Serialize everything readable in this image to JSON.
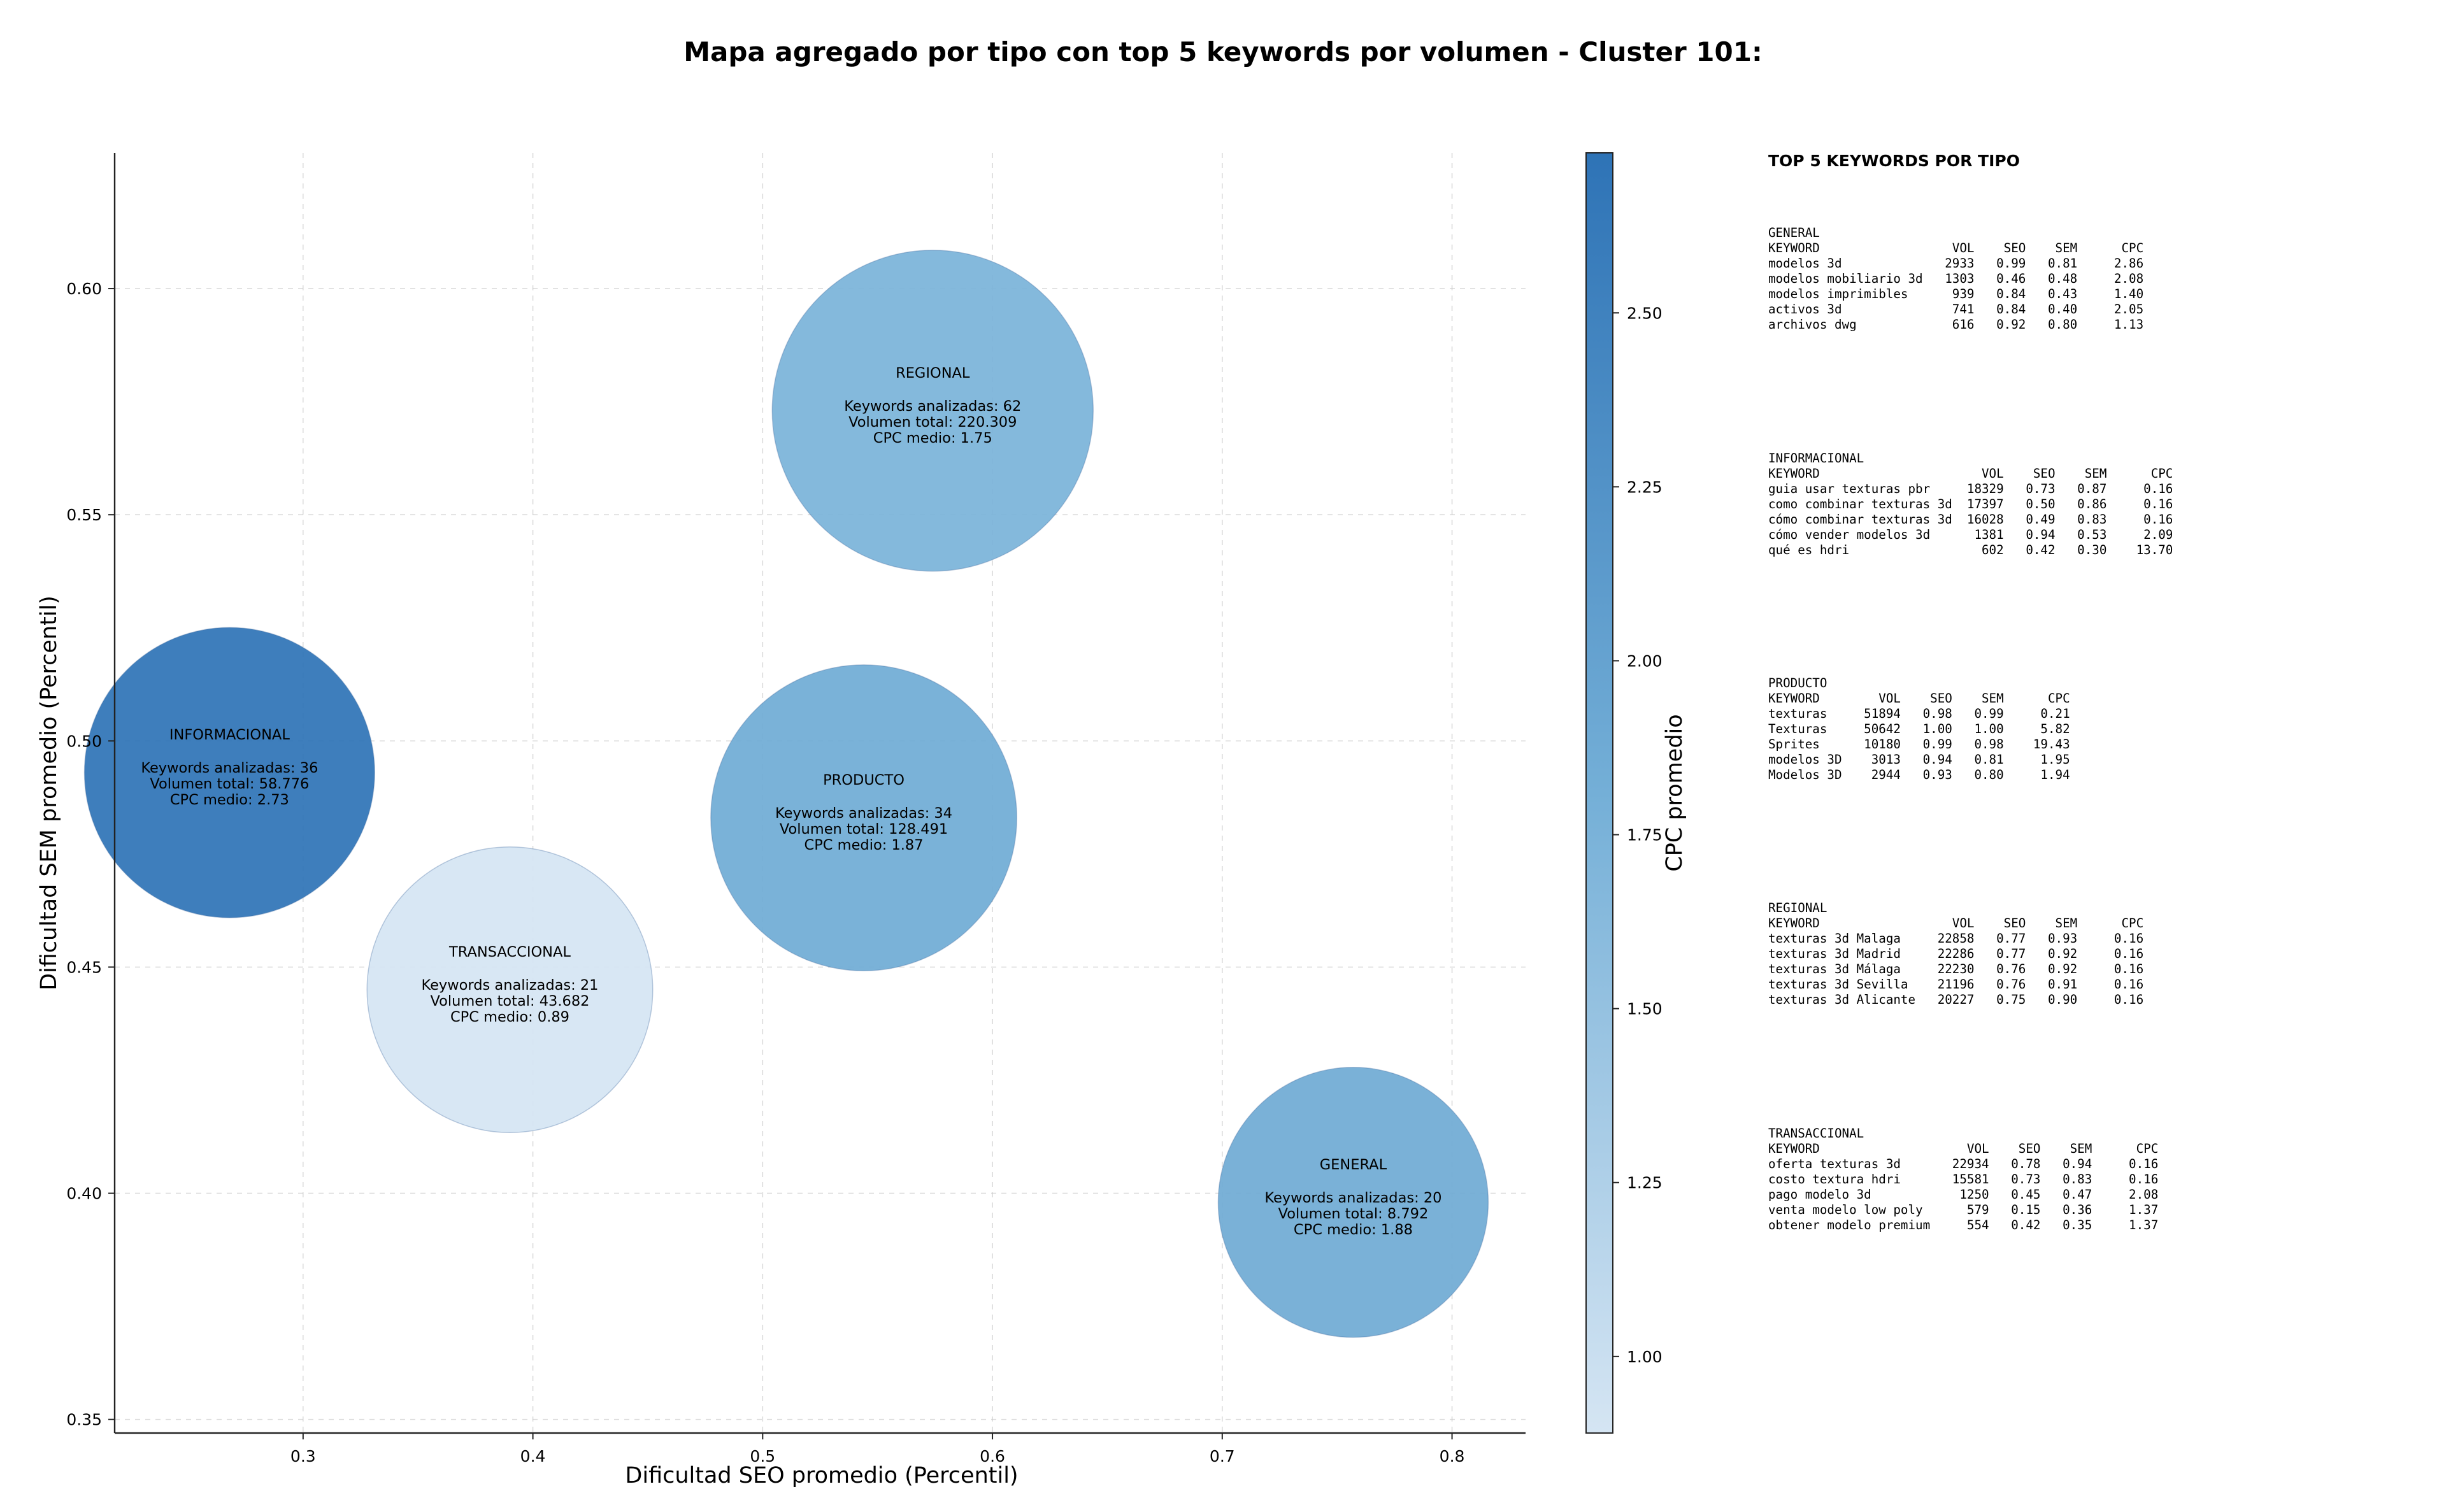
{
  "chart_data": {
    "type": "scatter",
    "subtype": "bubble",
    "title": "Mapa agregado por tipo con top 5 keywords por volumen - Cluster 101:",
    "xlabel": "Dificultad SEO promedio (Percentil)",
    "ylabel": "Dificultad SEM promedio (Percentil)",
    "xlim": [
      0.218,
      0.832
    ],
    "ylim": [
      0.347,
      0.63
    ],
    "xticks": [
      "0.3",
      "0.4",
      "0.5",
      "0.6",
      "0.7",
      "0.8"
    ],
    "yticks": [
      "0.35",
      "0.40",
      "0.45",
      "0.50",
      "0.55",
      "0.60"
    ],
    "grid": true,
    "colorbar": {
      "label": "CPC promedio",
      "range": [
        0.89,
        2.73
      ],
      "ticks": [
        "1.00",
        "1.25",
        "1.50",
        "1.75",
        "2.00",
        "2.25",
        "2.50"
      ],
      "color_low": "#d5e5f3",
      "color_mid": "#74afd7",
      "color_high": "#2e73b6"
    },
    "points": [
      {
        "name": "REGIONAL",
        "x": 0.574,
        "y": 0.573,
        "keywords_label": "Keywords analizadas: 62",
        "volume_label": "Volumen total: 220.309",
        "cpc_label": "CPC medio: 1.75",
        "keywords": 62,
        "volume": 220309,
        "cpc": 1.75
      },
      {
        "name": "INFORMACIONAL",
        "x": 0.268,
        "y": 0.493,
        "keywords_label": "Keywords analizadas: 36",
        "volume_label": "Volumen total: 58.776",
        "cpc_label": "CPC medio: 2.73",
        "keywords": 36,
        "volume": 58776,
        "cpc": 2.73
      },
      {
        "name": "PRODUCTO",
        "x": 0.544,
        "y": 0.483,
        "keywords_label": "Keywords analizadas: 34",
        "volume_label": "Volumen total: 128.491",
        "cpc_label": "CPC medio: 1.87",
        "keywords": 34,
        "volume": 128491,
        "cpc": 1.87
      },
      {
        "name": "TRANSACCIONAL",
        "x": 0.39,
        "y": 0.445,
        "keywords_label": "Keywords analizadas: 21",
        "volume_label": "Volumen total: 43.682",
        "cpc_label": "CPC medio: 0.89",
        "keywords": 21,
        "volume": 43682,
        "cpc": 0.89
      },
      {
        "name": "GENERAL",
        "x": 0.757,
        "y": 0.398,
        "keywords_label": "Keywords analizadas: 20",
        "volume_label": "Volumen total: 8.792",
        "cpc_label": "CPC medio: 1.88",
        "keywords": 20,
        "volume": 8792,
        "cpc": 1.88
      }
    ]
  },
  "side_panel": {
    "title": "TOP 5 KEYWORDS POR TIPO",
    "blocks": [
      {
        "text": "GENERAL\nKEYWORD                  VOL    SEO    SEM      CPC\nmodelos 3d              2933   0.99   0.81     2.86\nmodelos mobiliario 3d   1303   0.46   0.48     2.08\nmodelos imprimibles      939   0.84   0.43     1.40\nactivos 3d               741   0.84   0.40     2.05\narchivos dwg             616   0.92   0.80     1.13"
      },
      {
        "text": "INFORMACIONAL\nKEYWORD                      VOL    SEO    SEM      CPC\nguia usar texturas pbr     18329   0.73   0.87     0.16\ncomo combinar texturas 3d  17397   0.50   0.86     0.16\ncómo combinar texturas 3d  16028   0.49   0.83     0.16\ncómo vender modelos 3d      1381   0.94   0.53     2.09\nqué es hdri                  602   0.42   0.30    13.70"
      },
      {
        "text": "PRODUCTO\nKEYWORD        VOL    SEO    SEM      CPC\ntexturas     51894   0.98   0.99     0.21\nTexturas     50642   1.00   1.00     5.82\nSprites      10180   0.99   0.98    19.43\nmodelos 3D    3013   0.94   0.81     1.95\nModelos 3D    2944   0.93   0.80     1.94"
      },
      {
        "text": "REGIONAL\nKEYWORD                  VOL    SEO    SEM      CPC\ntexturas 3d Malaga     22858   0.77   0.93     0.16\ntexturas 3d Madrid     22286   0.77   0.92     0.16\ntexturas 3d Málaga     22230   0.76   0.92     0.16\ntexturas 3d Sevilla    21196   0.76   0.91     0.16\ntexturas 3d Alicante   20227   0.75   0.90     0.16"
      },
      {
        "text": "TRANSACCIONAL\nKEYWORD                    VOL    SEO    SEM      CPC\noferta texturas 3d       22934   0.78   0.94     0.16\ncosto textura hdri       15581   0.73   0.83     0.16\npago modelo 3d            1250   0.45   0.47     2.08\nventa modelo low poly      579   0.15   0.36     1.37\nobtener modelo premium     554   0.42   0.35     1.37"
      }
    ]
  }
}
